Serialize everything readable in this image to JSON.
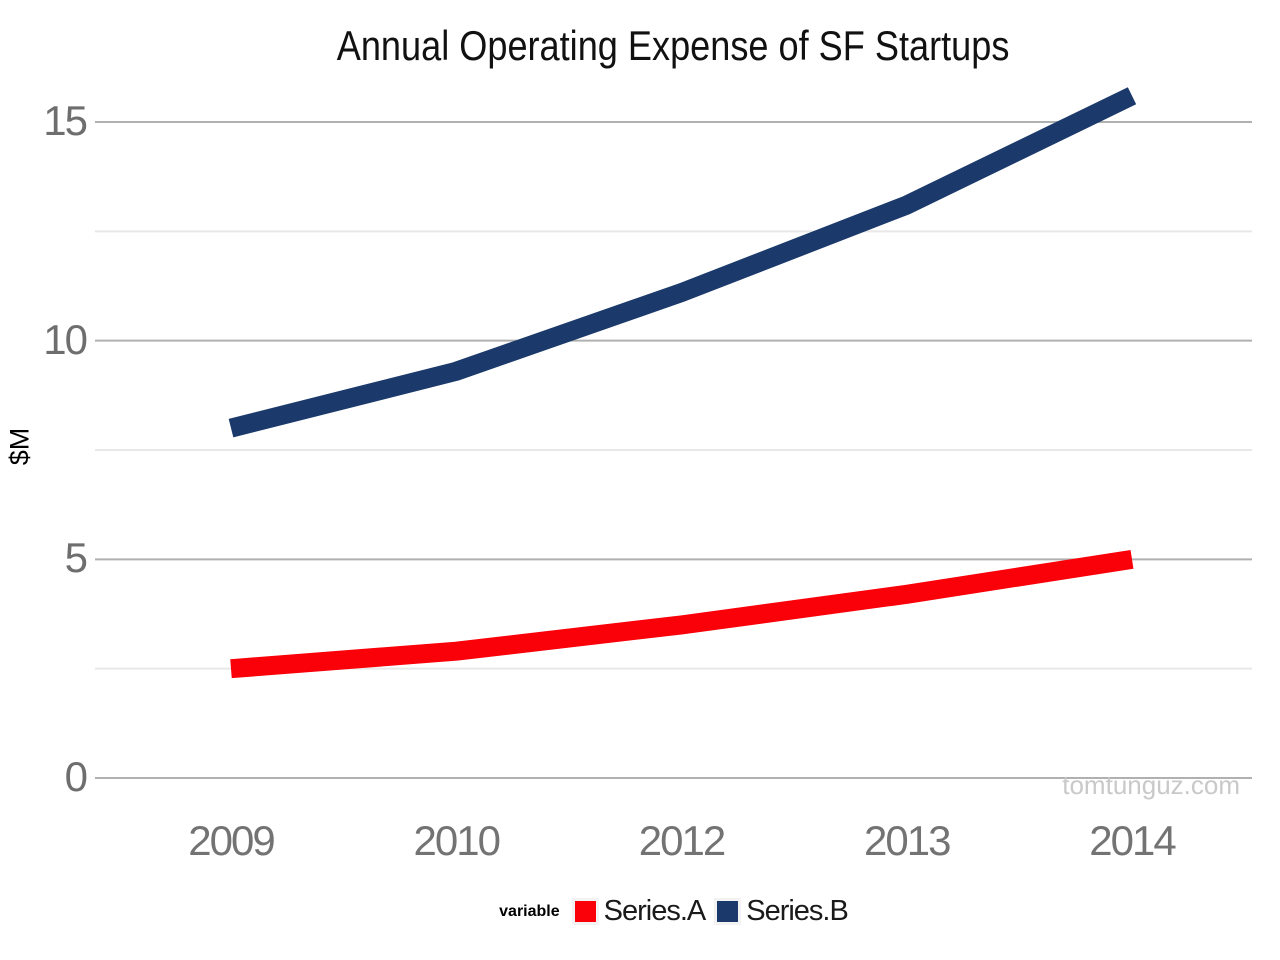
{
  "chart_data": {
    "type": "line",
    "title": "Annual Operating Expense of SF Startups",
    "ylabel": "$M",
    "xlabel": "",
    "categories": [
      "2009",
      "2010",
      "2012",
      "2013",
      "2014"
    ],
    "series": [
      {
        "name": "Series.A",
        "color": "#FA0008",
        "values": [
          2.5,
          2.9,
          3.5,
          4.2,
          5.0
        ]
      },
      {
        "name": "Series.B",
        "color": "#1B3A6B",
        "values": [
          8.0,
          9.3,
          11.1,
          13.1,
          15.6
        ]
      }
    ],
    "ylim": [
      0,
      16
    ],
    "y_major_ticks": [
      0,
      5,
      10,
      15
    ],
    "y_minor_ticks": [
      2.5,
      7.5,
      12.5
    ],
    "grid": true,
    "legend_position": "bottom",
    "legend_title": "variable"
  },
  "watermark": "tomtunguz.com",
  "colors": {
    "grid_major": "#B0B0B0",
    "grid_minor": "#E8E8E8",
    "axis_text": "#6E6E6E",
    "title_text": "#111111",
    "watermark_text": "#C9C9C9",
    "background": "#FFFFFF"
  }
}
